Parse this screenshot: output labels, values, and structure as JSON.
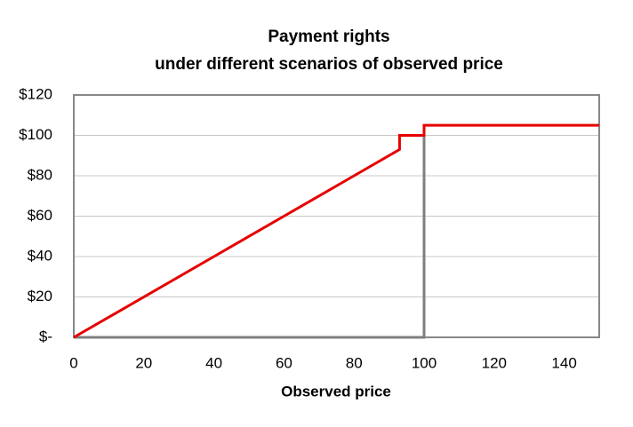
{
  "chart_data": {
    "type": "line",
    "title": "Payment rights",
    "subtitle": "under different scenarios of observed price",
    "x_label": "Observed price",
    "xlim": [
      0,
      150
    ],
    "xticks": [
      0,
      20,
      40,
      60,
      80,
      100,
      120,
      140
    ],
    "ylim": [
      0,
      120
    ],
    "yticks": [
      {
        "value": 0,
        "label": "$-"
      },
      {
        "value": 20,
        "label": "$20"
      },
      {
        "value": 40,
        "label": "$40"
      },
      {
        "value": 60,
        "label": "$60"
      },
      {
        "value": 80,
        "label": "$80"
      },
      {
        "value": 100,
        "label": "$100"
      },
      {
        "value": 120,
        "label": "$120"
      }
    ],
    "grid": true,
    "series": [
      {
        "color": "#7f7f7f",
        "x": [
          0,
          100,
          100
        ],
        "values": [
          0,
          0,
          105
        ]
      },
      {
        "color": "#e60000",
        "x": [
          0,
          93,
          93,
          100,
          100,
          150
        ],
        "values": [
          0,
          93,
          100,
          100,
          105,
          105
        ]
      }
    ]
  }
}
